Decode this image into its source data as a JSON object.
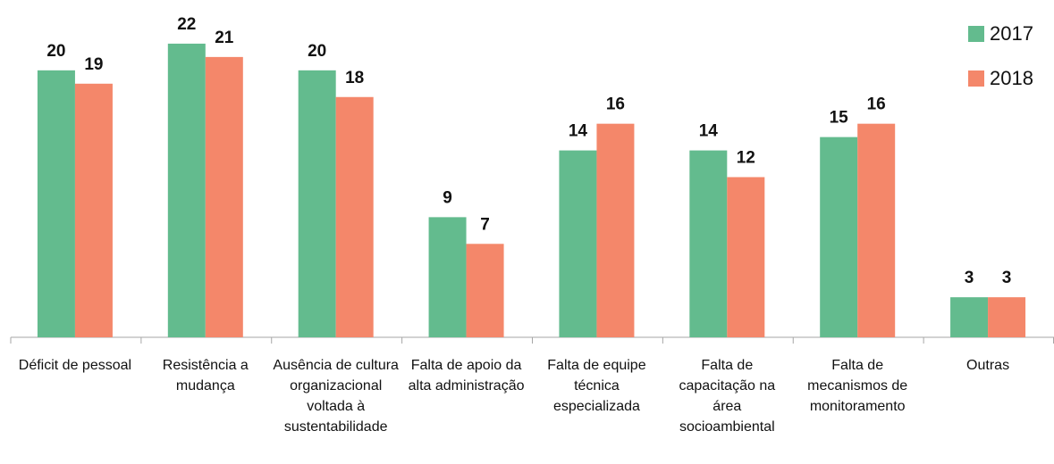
{
  "chart_data": {
    "type": "bar",
    "categories": [
      "Déficit de pessoal",
      "Resistência a mudança",
      "Ausência de cultura organizacional voltada à sustentabilidade",
      "Falta de apoio da alta administração",
      "Falta de equipe técnica especializada",
      "Falta de capacitação na área socioambiental",
      "Falta de mecanismos de monitoramento",
      "Outras"
    ],
    "series": [
      {
        "name": "2017",
        "color": "#63bb8e",
        "values": [
          20,
          22,
          20,
          9,
          14,
          14,
          15,
          3
        ]
      },
      {
        "name": "2018",
        "color": "#f4876a",
        "values": [
          19,
          21,
          18,
          7,
          16,
          12,
          16,
          3
        ]
      }
    ],
    "ylim": [
      0,
      24
    ],
    "legend": "top-right"
  }
}
